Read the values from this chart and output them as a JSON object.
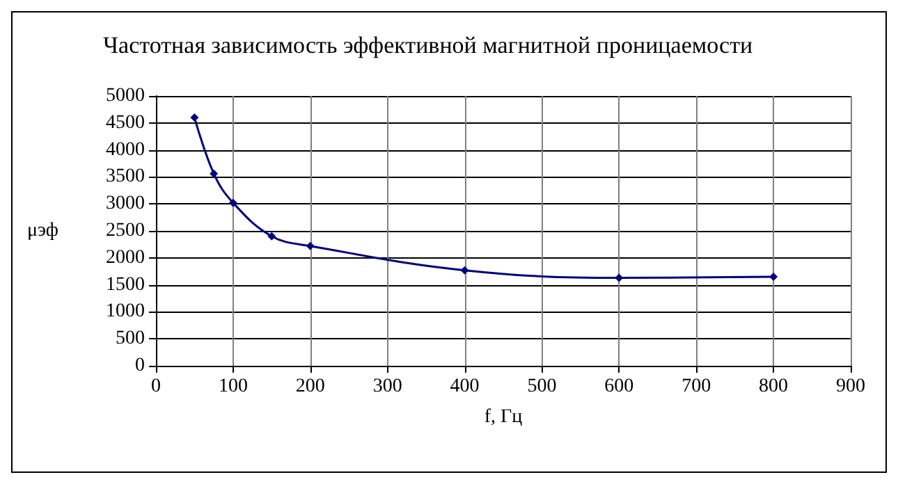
{
  "chart_data": {
    "type": "line",
    "title": "Частотная зависимость эффективной магнитной проницаемости",
    "xlabel": "f, Гц",
    "ylabel": "μэф",
    "x": [
      50,
      75,
      100,
      150,
      200,
      400,
      600,
      800
    ],
    "series": [
      {
        "color": "#000080",
        "values": [
          4600,
          3560,
          3020,
          2400,
          2220,
          1770,
          1630,
          1650
        ]
      }
    ],
    "xlim": [
      0,
      900
    ],
    "xticks": [
      0,
      100,
      200,
      300,
      400,
      500,
      600,
      700,
      800,
      900
    ],
    "ylim": [
      0,
      5000
    ],
    "yticks": [
      0,
      500,
      1000,
      1500,
      2000,
      2500,
      3000,
      3500,
      4000,
      4500,
      5000
    ],
    "grid": true,
    "marker": "diamond",
    "line_style": "solid"
  }
}
